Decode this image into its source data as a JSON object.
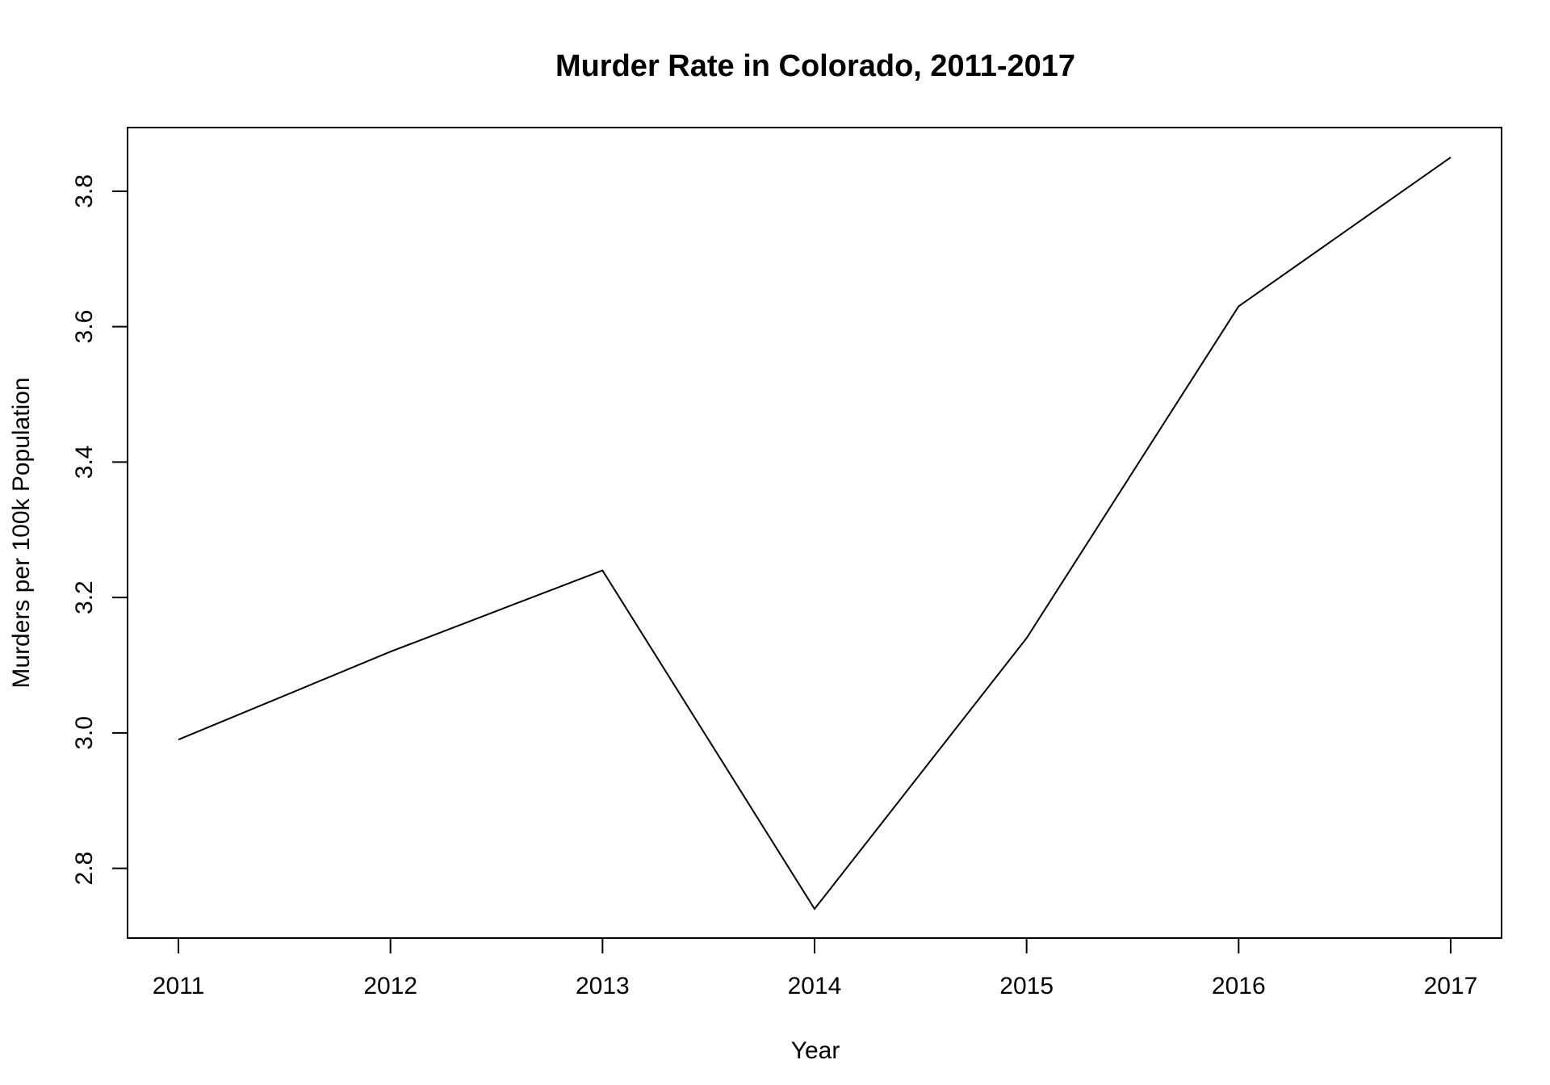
{
  "chart_data": {
    "type": "line",
    "title": "Murder Rate in Colorado, 2011-2017",
    "xlabel": "Year",
    "ylabel": "Murders per 100k Population",
    "x": [
      2011,
      2012,
      2013,
      2014,
      2015,
      2016,
      2017
    ],
    "x_tick_labels": [
      "2011",
      "2012",
      "2013",
      "2014",
      "2015",
      "2016",
      "2017"
    ],
    "y_ticks": [
      2.8,
      3.0,
      3.2,
      3.4,
      3.6,
      3.8
    ],
    "y_tick_labels": [
      "2.8",
      "3.0",
      "3.2",
      "3.4",
      "3.6",
      "3.8"
    ],
    "series": [
      {
        "values": [
          2.99,
          3.12,
          3.24,
          2.74,
          3.14,
          3.63,
          3.85
        ]
      }
    ],
    "xlim": [
      2010.76,
      2017.24
    ],
    "ylim": [
      2.697,
      3.894
    ],
    "grid": false,
    "legend": "none",
    "line_color": "#000000"
  }
}
